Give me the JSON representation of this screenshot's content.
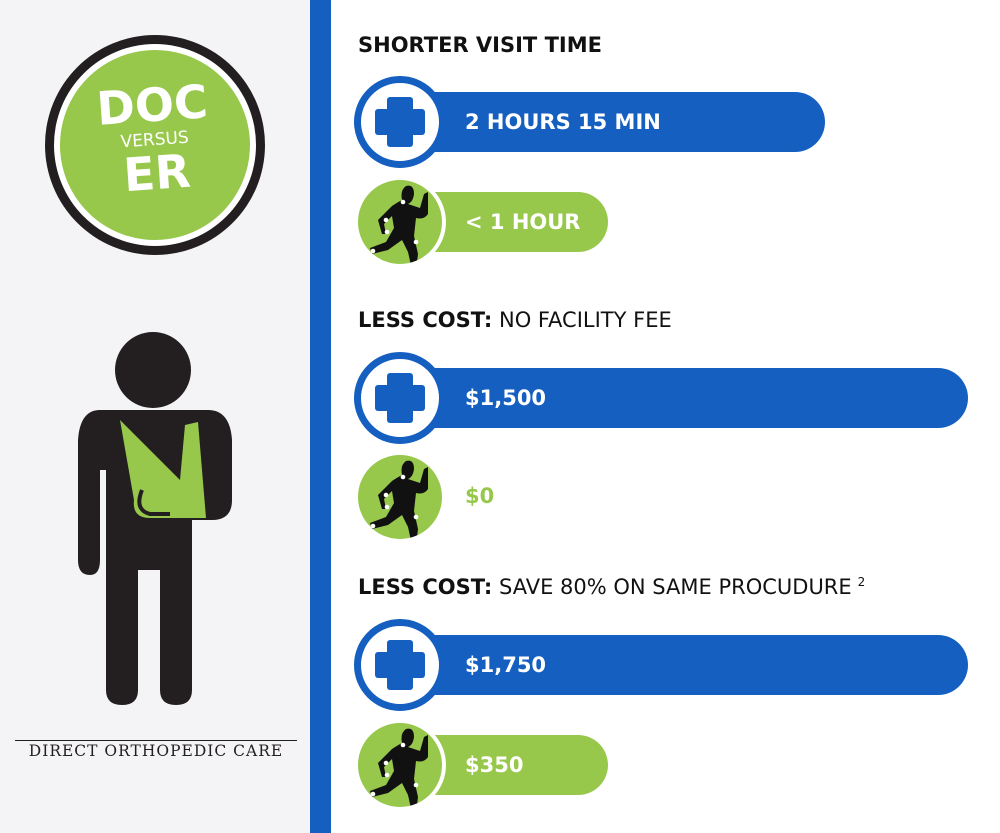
{
  "logo": {
    "top": "DOC",
    "middle": "VERSUS",
    "bottom": "ER"
  },
  "brand": "DIRECT ORTHOPEDIC CARE",
  "colors": {
    "blue": "#155fc1",
    "green": "#97c84c",
    "dark": "#231f20",
    "panel": "#f4f4f6"
  },
  "icons": {
    "er": "medical-cross-icon",
    "doc": "runner-icon",
    "person": "person-arm-sling-icon"
  },
  "sections": [
    {
      "title_bold": "SHORTER VISIT TIME",
      "title_rest": "",
      "sup": "",
      "er_value": "2 HOURS 15 MIN",
      "doc_value": "< 1 HOUR"
    },
    {
      "title_bold": "LESS COST:",
      "title_rest": " NO FACILITY FEE",
      "sup": "",
      "er_value": "$1,500",
      "doc_value": "$0"
    },
    {
      "title_bold": "LESS COST:",
      "title_rest": " SAVE 80% ON SAME PROCUDURE",
      "sup": "2",
      "er_value": "$1,750",
      "doc_value": "$350"
    }
  ]
}
